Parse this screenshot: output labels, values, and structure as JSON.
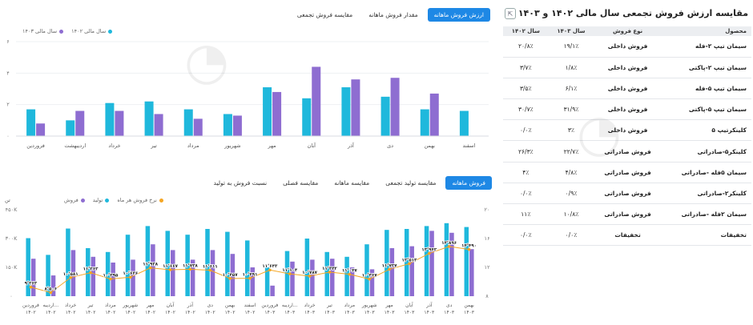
{
  "top": {
    "tabs": [
      {
        "label": "ارزش فروش ماهانه",
        "active": true
      },
      {
        "label": "مقدار فروش ماهانه",
        "active": false
      },
      {
        "label": "مقایسه فروش تجمعی",
        "active": false
      }
    ],
    "legend": [
      {
        "label": "سال مالی ۱۴۰۳",
        "color": "#8e6dd1"
      },
      {
        "label": "سال مالی ۱۴۰۲",
        "color": "#1fb8dc"
      }
    ]
  },
  "bottom": {
    "tabs": [
      {
        "label": "فروش ماهانه",
        "active": true
      },
      {
        "label": "مقایسه تولید تجمعی",
        "active": false
      },
      {
        "label": "مقایسه ماهانه",
        "active": false
      },
      {
        "label": "مقایسه فصلی",
        "active": false
      },
      {
        "label": "نسبت فروش به تولید",
        "active": false
      }
    ],
    "legend": [
      {
        "label": "فروش",
        "color": "#8e6dd1"
      },
      {
        "label": "تولید",
        "color": "#1fb8dc"
      },
      {
        "label": "نرخ فروش هر ماه",
        "color": "#f5a623"
      }
    ],
    "left_axis_title": "تن"
  },
  "table": {
    "title": "مقایسه ارزش فروش تجمعی سال مالی ۱۴۰۲ و ۱۴۰۳",
    "export_icon": "export-icon",
    "headers": [
      "محصول",
      "نوع فروش",
      "سال ۱۴۰۳",
      "سال ۱۴۰۲"
    ],
    "rows": [
      [
        "سیمان تیپ ۲-فله",
        "فروش داخلی",
        "۱۹/۱٪",
        "۲۰/۸٪"
      ],
      [
        "سیمان تیپ ۲-پاکتی",
        "فروش داخلی",
        "۱/۸٪",
        "۳/۷٪"
      ],
      [
        "سیمان تیپ ۵-فله",
        "فروش داخلی",
        "۶/۱٪",
        "۳/۵٪"
      ],
      [
        "سیمان تیپ ۵-پاکتی",
        "فروش داخلی",
        "۳۱/۹٪",
        "۳۰/۷٪"
      ],
      [
        "کلینکرتیپ ۵",
        "فروش داخلی",
        "۳٪",
        "۰/۰٪"
      ],
      [
        "کلینکر۵-صادراتی",
        "فروش صادراتی",
        "۲۲/۷٪",
        "۲۶/۳٪"
      ],
      [
        "سیمان ۵فله -صادراتی",
        "فروش صادراتی",
        "۴/۸٪",
        "۴٪"
      ],
      [
        "کلینکر۲-صادراتی",
        "فروش صادراتی",
        "۰/۹٪",
        "۰/۰٪"
      ],
      [
        "سیمان ۲فله -صادراتی",
        "فروش صادراتی",
        "۱۰/۸٪",
        "۱۱٪"
      ],
      [
        "تخفیفات",
        "تخفیفات",
        "۰/۰٪",
        "۰/۰٪"
      ]
    ]
  },
  "chart_data": [
    {
      "type": "bar",
      "title": "",
      "categories": [
        "فروردین",
        "اردیبهشت",
        "خرداد",
        "تیر",
        "مرداد",
        "شهریور",
        "مهر",
        "آبان",
        "آذر",
        "دی",
        "بهمن",
        "اسفند"
      ],
      "series": [
        {
          "name": "سال مالی ۱۴۰۲",
          "color": "#1fb8dc",
          "values": [
            1.7,
            1.0,
            2.1,
            2.2,
            1.7,
            1.4,
            3.1,
            2.4,
            3.1,
            2.5,
            1.7,
            1.6
          ]
        },
        {
          "name": "سال مالی ۱۴۰۳",
          "color": "#8e6dd1",
          "values": [
            0.8,
            1.6,
            1.6,
            1.4,
            1.1,
            1.3,
            2.8,
            4.4,
            3.6,
            3.7,
            2.7,
            null
          ]
        }
      ],
      "y_ticks": [
        "۰",
        "۲",
        "۴",
        "۶"
      ],
      "ylim": [
        0,
        6
      ],
      "grid": true
    },
    {
      "type": "bar",
      "title": "",
      "categories": [
        [
          "فروردین",
          "۱۴۰۲"
        ],
        [
          "اردیبه...",
          "۱۴۰۲"
        ],
        [
          "خرداد",
          "۱۴۰۲"
        ],
        [
          "تیر",
          "۱۴۰۲"
        ],
        [
          "مرداد",
          "۱۴۰۲"
        ],
        [
          "شهریور",
          "۱۴۰۲"
        ],
        [
          "مهر",
          "۱۴۰۲"
        ],
        [
          "آبان",
          "۱۴۰۲"
        ],
        [
          "آذر",
          "۱۴۰۲"
        ],
        [
          "دی",
          "۱۴۰۲"
        ],
        [
          "بهمن",
          "۱۴۰۲"
        ],
        [
          "اسفند",
          "۱۴۰۲"
        ],
        [
          "فروردین",
          "۱۴۰۳"
        ],
        [
          "اردیبه...",
          "۱۴۰۳"
        ],
        [
          "خرداد",
          "۱۴۰۳"
        ],
        [
          "تیر",
          "۱۴۰۳"
        ],
        [
          "مرداد",
          "۱۴۰۳"
        ],
        [
          "شهریور",
          "۱۴۰۳"
        ],
        [
          "مهر",
          "۱۴۰۳"
        ],
        [
          "آبان",
          "۱۴۰۳"
        ],
        [
          "آذر",
          "۱۴۰۳"
        ],
        [
          "دی",
          "۱۴۰۳"
        ],
        [
          "بهمن",
          "۱۴۰۳"
        ]
      ],
      "series": [
        {
          "name": "تولید",
          "color": "#1fb8dc",
          "axis": "left",
          "values": [
            302,
            215,
            352,
            250,
            230,
            320,
            365,
            340,
            320,
            350,
            335,
            290,
            150,
            235,
            300,
            230,
            205,
            270,
            345,
            350,
            365,
            380,
            360
          ]
        },
        {
          "name": "فروش",
          "color": "#8e6dd1",
          "axis": "left",
          "values": [
            195,
            108,
            240,
            205,
            175,
            190,
            270,
            240,
            190,
            240,
            220,
            150,
            55,
            180,
            190,
            195,
            150,
            140,
            250,
            260,
            340,
            330,
            245
          ]
        },
        {
          "name": "نرخ فروش هر ماه",
          "color": "#f5a623",
          "axis": "right",
          "values": [
            9.26,
            8.5,
            10.58,
            11.26,
            10.39,
            10.64,
            11.93,
            11.67,
            11.73,
            11.61,
            10.46,
            10.49,
            11.64,
            11.1,
            10.79,
            11.34,
            11.04,
            10.37,
            11.73,
            12.51,
            13.94,
            14.9,
            14.49
          ],
          "labels": [
            "۹٬۲۶۲",
            "۸٬۵۰۶",
            "۱۰٬۵۸۱",
            "۱۱٬۲۶۲",
            "۱۰٬۳۹۵",
            "۱۰٬۶۳۶",
            "۱۱٬۹۲۸",
            "۱۱٬۶۶۷",
            "۱۱٬۷۳۸",
            "۱۱٬۶۱۱",
            "۱۰٬۴۵۷",
            "۱۰٬۴۹۱",
            "۱۱٬۶۴۳",
            "۱۱٬۱۰۴",
            "۱۰٬۷۸۷",
            "۱۱٬۳۴۲",
            "۱۱٬۰۴۷",
            "۱۰٬۳۶۷",
            "۱۱٬۷۲۷",
            "۱۲٬۵۱۳",
            "۱۳٬۹۴۲",
            "۱۴٬۸۹۶",
            "۱۴٬۴۹۰"
          ]
        }
      ],
      "y_left_ticks": [
        "۰",
        "۱۵۰K",
        "۳۰۰K",
        "۴۵۰K"
      ],
      "ylim_left": [
        0,
        450
      ],
      "y_right_ticks": [
        "۸",
        "۱۲",
        "۱۶",
        "۲۰"
      ],
      "ylim_right": [
        8,
        20
      ],
      "grid": false
    }
  ]
}
